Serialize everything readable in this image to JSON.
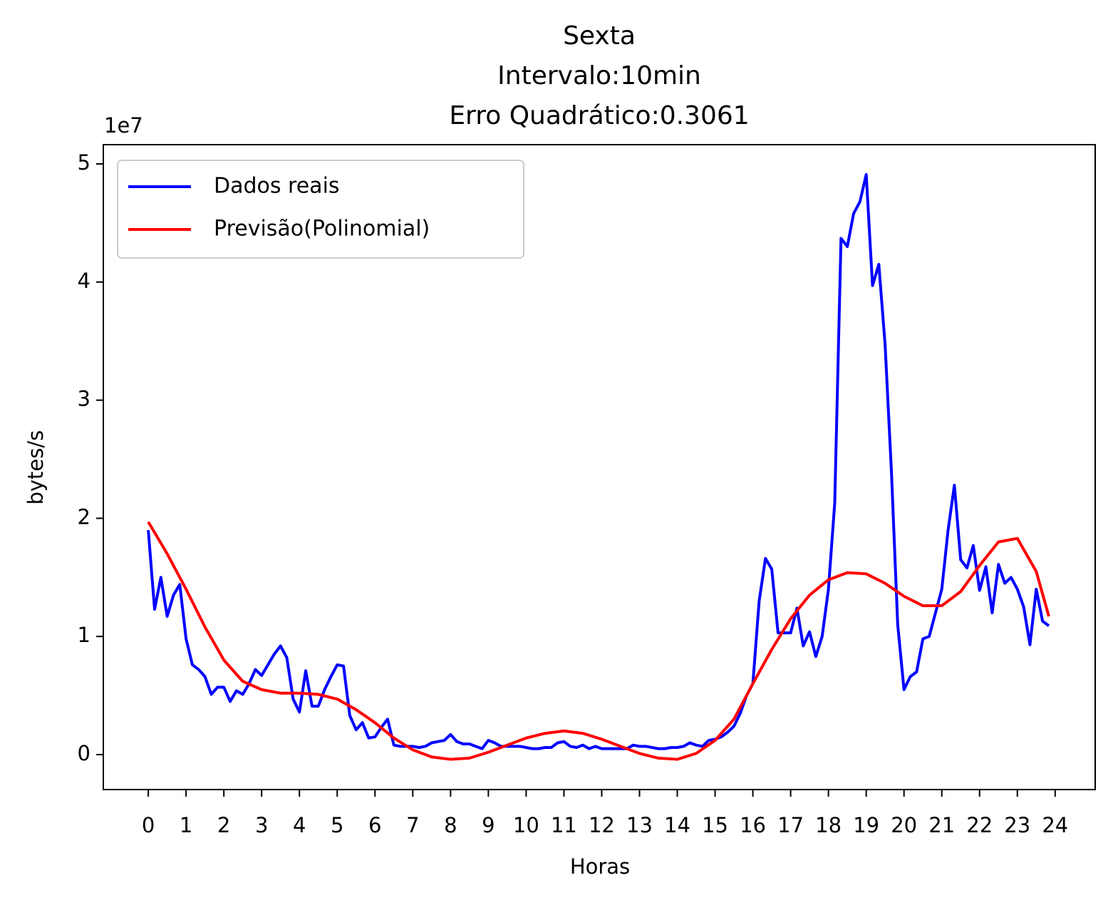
{
  "chart_data": {
    "type": "line",
    "title": [
      "Sexta",
      "Intervalo:10min",
      "Erro Quadrático:0.3061"
    ],
    "xlabel": "Horas",
    "ylabel": "bytes/s",
    "y_offset_label": "1e7",
    "xlim": [
      -1.19,
      25.06
    ],
    "ylim": [
      -0.296,
      5.163
    ],
    "xticks": [
      0,
      1,
      2,
      3,
      4,
      5,
      6,
      7,
      8,
      9,
      10,
      11,
      12,
      13,
      14,
      15,
      16,
      17,
      18,
      19,
      20,
      21,
      22,
      23,
      24
    ],
    "yticks": [
      0,
      1,
      2,
      3,
      4,
      5
    ],
    "legend": "upper left",
    "series": [
      {
        "name": "Dados reais",
        "color": "#0000ff",
        "x": [
          0,
          0.1667,
          0.3333,
          0.5,
          0.6667,
          0.8333,
          1,
          1.1667,
          1.3333,
          1.5,
          1.6667,
          1.8333,
          2,
          2.1667,
          2.3333,
          2.5,
          2.6667,
          2.8333,
          3,
          3.1667,
          3.3333,
          3.5,
          3.6667,
          3.8333,
          4,
          4.1667,
          4.3333,
          4.5,
          4.6667,
          4.8333,
          5,
          5.1667,
          5.3333,
          5.5,
          5.6667,
          5.8333,
          6,
          6.1667,
          6.3333,
          6.5,
          6.6667,
          6.8333,
          7,
          7.1667,
          7.3333,
          7.5,
          7.6667,
          7.8333,
          8,
          8.1667,
          8.3333,
          8.5,
          8.6667,
          8.8333,
          9,
          9.1667,
          9.3333,
          9.5,
          9.6667,
          9.8333,
          10,
          10.1667,
          10.3333,
          10.5,
          10.6667,
          10.8333,
          11,
          11.1667,
          11.3333,
          11.5,
          11.6667,
          11.8333,
          12,
          12.1667,
          12.3333,
          12.5,
          12.6667,
          12.8333,
          13,
          13.1667,
          13.3333,
          13.5,
          13.6667,
          13.8333,
          14,
          14.1667,
          14.3333,
          14.5,
          14.6667,
          14.8333,
          15,
          15.1667,
          15.3333,
          15.5,
          15.6667,
          15.8333,
          16,
          16.1667,
          16.3333,
          16.5,
          16.6667,
          16.8333,
          17,
          17.1667,
          17.3333,
          17.5,
          17.6667,
          17.8333,
          18,
          18.1667,
          18.3333,
          18.5,
          18.6667,
          18.8333,
          19,
          19.1667,
          19.3333,
          19.5,
          19.6667,
          19.8333,
          20,
          20.1667,
          20.3333,
          20.5,
          20.6667,
          20.8333,
          21,
          21.1667,
          21.3333,
          21.5,
          21.6667,
          21.8333,
          22,
          22.1667,
          22.3333,
          22.5,
          22.6667,
          22.8333,
          23,
          23.1667,
          23.3333,
          23.5,
          23.6667,
          23.8333
        ],
        "values": [
          1.9,
          1.23,
          1.5,
          1.17,
          1.35,
          1.44,
          0.98,
          0.76,
          0.72,
          0.66,
          0.51,
          0.57,
          0.57,
          0.45,
          0.54,
          0.51,
          0.6,
          0.72,
          0.67,
          0.76,
          0.85,
          0.92,
          0.82,
          0.47,
          0.36,
          0.71,
          0.41,
          0.41,
          0.55,
          0.66,
          0.76,
          0.75,
          0.33,
          0.21,
          0.27,
          0.14,
          0.15,
          0.23,
          0.3,
          0.08,
          0.07,
          0.07,
          0.07,
          0.06,
          0.07,
          0.1,
          0.11,
          0.12,
          0.17,
          0.11,
          0.09,
          0.09,
          0.07,
          0.05,
          0.12,
          0.1,
          0.07,
          0.07,
          0.07,
          0.07,
          0.06,
          0.05,
          0.05,
          0.06,
          0.06,
          0.1,
          0.11,
          0.07,
          0.06,
          0.08,
          0.05,
          0.07,
          0.05,
          0.05,
          0.05,
          0.05,
          0.05,
          0.08,
          0.07,
          0.07,
          0.06,
          0.05,
          0.05,
          0.06,
          0.06,
          0.07,
          0.1,
          0.08,
          0.07,
          0.12,
          0.13,
          0.15,
          0.19,
          0.24,
          0.35,
          0.5,
          0.6,
          1.3,
          1.66,
          1.57,
          1.03,
          1.03,
          1.03,
          1.24,
          0.92,
          1.04,
          0.83,
          1.0,
          1.4,
          2.13,
          4.37,
          4.3,
          4.58,
          4.68,
          4.91,
          3.97,
          4.15,
          3.47,
          2.4,
          1.1,
          0.55,
          0.66,
          0.7,
          0.98,
          1.0,
          1.2,
          1.4,
          1.9,
          2.28,
          1.65,
          1.58,
          1.77,
          1.39,
          1.59,
          1.2,
          1.61,
          1.45,
          1.5,
          1.4,
          1.25,
          0.93,
          1.4,
          1.13,
          1.09
        ]
      },
      {
        "name": "Previsão(Polinomial)",
        "color": "#ff0000",
        "x": [
          0,
          0.5,
          1,
          1.5,
          2,
          2.5,
          3,
          3.5,
          4,
          4.5,
          5,
          5.5,
          6,
          6.5,
          7,
          7.5,
          8,
          8.5,
          9,
          9.5,
          10,
          10.5,
          11,
          11.5,
          12,
          12.5,
          13,
          13.5,
          14,
          14.5,
          15,
          15.5,
          16,
          16.5,
          17,
          17.5,
          18,
          18.5,
          19,
          19.5,
          20,
          20.5,
          21,
          21.5,
          22,
          22.5,
          23,
          23.5,
          23.8333
        ],
        "values": [
          1.97,
          1.7,
          1.4,
          1.08,
          0.8,
          0.62,
          0.55,
          0.52,
          0.52,
          0.51,
          0.47,
          0.38,
          0.27,
          0.14,
          0.04,
          -0.02,
          -0.04,
          -0.03,
          0.02,
          0.08,
          0.14,
          0.18,
          0.2,
          0.18,
          0.13,
          0.07,
          0.01,
          -0.03,
          -0.04,
          0.01,
          0.12,
          0.3,
          0.6,
          0.89,
          1.15,
          1.35,
          1.48,
          1.54,
          1.53,
          1.45,
          1.34,
          1.26,
          1.26,
          1.38,
          1.6,
          1.8,
          1.83,
          1.55,
          1.17
        ]
      }
    ]
  }
}
